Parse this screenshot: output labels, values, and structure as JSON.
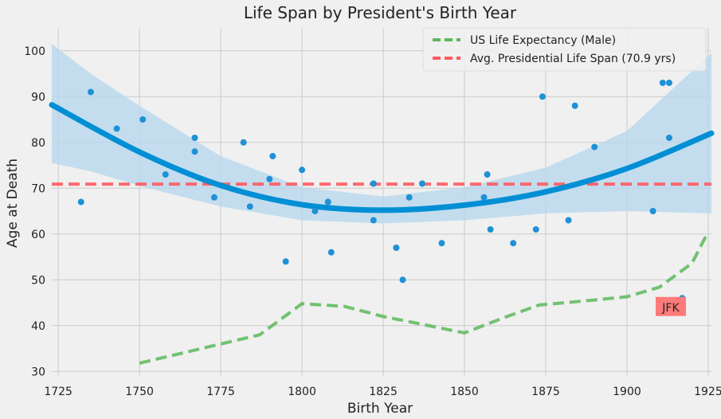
{
  "chart_data": {
    "type": "scatter",
    "title": "Life Span by President's Birth Year",
    "xlabel": "Birth Year",
    "ylabel": "Age at Death",
    "xlim": [
      1723,
      1926
    ],
    "ylim": [
      29,
      105
    ],
    "xticks": [
      1725,
      1750,
      1775,
      1800,
      1825,
      1850,
      1875,
      1900,
      1925
    ],
    "yticks": [
      30,
      40,
      50,
      60,
      70,
      80,
      90,
      100
    ],
    "grid": true,
    "legend_position": "top-right",
    "colors": {
      "points": "#1f91d6",
      "fit_line": "#008fd5",
      "confidence_band": "#b6d7ee",
      "avg_line": "#ff5a5f",
      "life_expectancy": "#5cb85c",
      "annotation_box": "#ff7b7b",
      "background": "#f0f0f0",
      "grid": "#cbcbcb"
    },
    "scatter": {
      "x": [
        1732,
        1735,
        1743,
        1751,
        1758,
        1767,
        1767,
        1773,
        1782,
        1784,
        1790,
        1791,
        1795,
        1800,
        1804,
        1808,
        1809,
        1822,
        1822,
        1829,
        1831,
        1833,
        1837,
        1843,
        1856,
        1857,
        1858,
        1865,
        1872,
        1874,
        1882,
        1884,
        1890,
        1908,
        1911,
        1913,
        1913,
        1917
      ],
      "y": [
        67,
        91,
        83,
        85,
        73,
        81,
        78,
        68,
        80,
        66,
        72,
        77,
        54,
        74,
        65,
        67,
        56,
        71,
        63,
        57,
        50,
        68,
        71,
        58,
        68,
        73,
        61,
        58,
        61,
        90,
        63,
        88,
        79,
        65,
        93,
        93,
        81,
        46
      ]
    },
    "fit_curve": {
      "x": [
        1723,
        1750,
        1775,
        1800,
        1825,
        1850,
        1875,
        1900,
        1926
      ],
      "y": [
        88.2,
        77.9,
        70.6,
        66.4,
        65.2,
        66.3,
        69.2,
        74.3,
        82.0
      ]
    },
    "confidence_band": {
      "x": [
        1723,
        1735,
        1750,
        1775,
        1800,
        1825,
        1850,
        1875,
        1900,
        1926
      ],
      "upper": [
        101.5,
        95,
        88,
        77,
        70.2,
        68.2,
        70.2,
        74.5,
        82.5,
        99.5
      ],
      "lower": [
        75.5,
        73.7,
        70.5,
        66,
        63,
        62.3,
        63,
        64.5,
        65,
        64.5
      ]
    },
    "series": [
      {
        "name": "US Life Expectancy (Male)",
        "style": "dashed",
        "x": [
          1750,
          1775,
          1787,
          1800,
          1813,
          1825,
          1850,
          1862,
          1873,
          1890,
          1900,
          1910,
          1920,
          1925
        ],
        "y": [
          31.8,
          36,
          38,
          44.8,
          44.2,
          42,
          38.4,
          41.7,
          44.5,
          45.6,
          46.3,
          48.4,
          53.6,
          60.5
        ]
      },
      {
        "name": "Avg. Presidential Life Span (70.9 yrs)",
        "style": "dashed",
        "x": [
          1723,
          1926
        ],
        "y": [
          70.9,
          70.9
        ]
      }
    ],
    "annotations": [
      {
        "text": "JFK",
        "x": 1913,
        "y": 44
      }
    ]
  }
}
